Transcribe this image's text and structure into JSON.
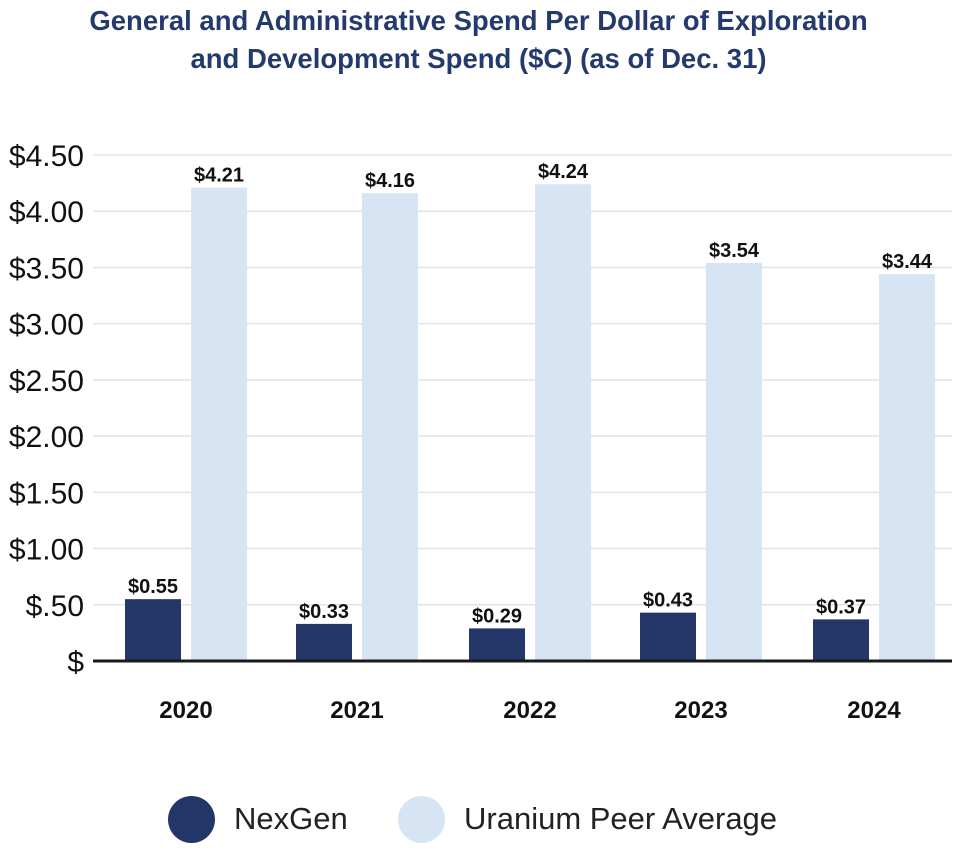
{
  "title_line1": "General and Administrative Spend Per Dollar of Exploration",
  "title_line2": "and Development Spend ($C) (as of Dec. 31)",
  "colors": {
    "title": "#243a6e",
    "nexgen": "#243568",
    "peer": "#d6e4f3",
    "grid": "#e3e3e3",
    "axis": "#1a1a1a",
    "text": "#111111"
  },
  "chart_data": {
    "type": "bar",
    "title": "General and Administrative Spend Per Dollar of Exploration and Development Spend ($C) (as of Dec. 31)",
    "categories": [
      "2020",
      "2021",
      "2022",
      "2023",
      "2024"
    ],
    "series": [
      {
        "name": "NexGen",
        "values": [
          0.55,
          0.33,
          0.29,
          0.43,
          0.37
        ],
        "labels": [
          "$0.55",
          "$0.33",
          "$0.29",
          "$0.43",
          "$0.37"
        ]
      },
      {
        "name": "Uranium Peer Average",
        "values": [
          4.21,
          4.16,
          4.24,
          3.54,
          3.44
        ],
        "labels": [
          "$4.21",
          "$4.16",
          "$4.24",
          "$3.54",
          "$3.44"
        ]
      }
    ],
    "ylim": [
      0,
      4.5
    ],
    "yticks": [
      0,
      0.5,
      1.0,
      1.5,
      2.0,
      2.5,
      3.0,
      3.5,
      4.0,
      4.5
    ],
    "ytick_labels": [
      "$",
      "$.50",
      "$1.00",
      "$1.50",
      "$2.00",
      "$2.50",
      "$3.00",
      "$3.50",
      "$4.00",
      "$4.50"
    ],
    "grid": true,
    "legend": "bottom-center"
  },
  "legend": {
    "nexgen_label": "NexGen",
    "peer_label": "Uranium Peer Average"
  }
}
